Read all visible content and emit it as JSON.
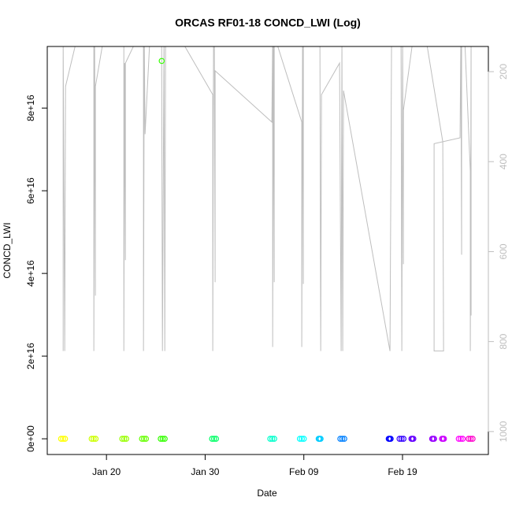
{
  "chart_data": {
    "type": "scatter",
    "title": "ORCAS RF01-18 CONCD_LWI (Log)",
    "xlabel": "Date",
    "ylabel": "CONCD_LWI",
    "xlim": [
      14.0,
      58.7
    ],
    "xticks": [
      {
        "value": 20,
        "label": "Jan 20"
      },
      {
        "value": 30,
        "label": "Jan 30"
      },
      {
        "value": 40,
        "label": "Feb 09"
      },
      {
        "value": 50,
        "label": "Feb 19"
      }
    ],
    "ylim": [
      -3800000000000000.0,
      9.49e+16
    ],
    "yticks": [
      {
        "value": 0,
        "label": "0e+00"
      },
      {
        "value": 2e+16,
        "label": "2e+16"
      },
      {
        "value": 4e+16,
        "label": "4e+16"
      },
      {
        "value": 6e+16,
        "label": "6e+16"
      },
      {
        "value": 8e+16,
        "label": "8e+16"
      }
    ],
    "y2lim": [
      1051,
      144
    ],
    "y2ticks": [
      200,
      400,
      600,
      800,
      1000
    ],
    "series": [
      {
        "type": "line",
        "axis": "y2",
        "color": "#bebebe",
        "x": [
          15.61,
          15.61,
          15.77,
          15.85,
          16.97,
          18.72,
          18.72,
          18.8,
          18.88,
          18.88,
          19.68,
          21.76,
          21.76,
          21.84,
          21.92,
          21.92,
          23.03,
          23.75,
          23.75,
          23.83,
          23.91,
          24.39,
          25.59,
          25.67,
          25.83,
          25.91,
          25.99,
          27.58,
          30.77,
          30.77,
          30.85,
          30.93,
          31.01,
          31.01,
          36.76,
          36.84,
          36.84,
          36.92,
          37.0,
          37.0,
          37.16,
          39.79,
          39.79,
          39.87,
          39.95,
          39.95,
          41.63,
          41.71,
          41.79,
          43.62,
          43.78,
          43.86,
          43.94,
          44.02,
          48.73,
          48.89,
          49.85,
          49.93,
          50.01,
          50.09,
          50.09,
          51.05,
          52.4,
          54.08,
          54.16,
          53.2,
          53.2,
          55.83,
          55.91,
          55.99,
          55.99,
          56.31,
          56.87,
          56.87,
          56.95,
          56.95
        ],
        "values": [
          821,
          130,
          821,
          233,
          130,
          130,
          821,
          130,
          698,
          233,
          130,
          130,
          821,
          181,
          619,
          181,
          130,
          130,
          821,
          130,
          339,
          130,
          130,
          821,
          130,
          821,
          130,
          130,
          251,
          821,
          130,
          130,
          668,
          198,
          312,
          130,
          812,
          130,
          668,
          130,
          130,
          312,
          812,
          130,
          672,
          130,
          130,
          821,
          251,
          181,
          821,
          130,
          821,
          242,
          821,
          130,
          130,
          821,
          130,
          628,
          286,
          130,
          130,
          356,
          821,
          821,
          360,
          347,
          130,
          607,
          130,
          130,
          421,
          821,
          130,
          742
        ]
      },
      {
        "type": "scatter",
        "x": [
          15.4,
          15.6,
          15.8,
          18.5,
          18.7,
          18.9,
          21.6,
          21.8,
          22.0,
          23.6,
          23.8,
          24.0,
          25.5,
          25.7,
          25.9,
          30.7,
          30.9,
          31.1,
          36.6,
          36.8,
          37.0,
          39.6,
          39.8,
          40.0,
          41.5,
          41.6,
          41.7,
          43.7,
          43.9,
          44.1,
          48.6,
          48.7,
          48.8,
          49.7,
          49.9,
          50.1,
          50.9,
          51.0,
          51.1,
          53.0,
          53.1,
          53.2,
          54.0,
          54.1,
          54.2,
          55.7,
          55.9,
          56.1,
          56.7,
          56.9,
          57.1,
          25.6
        ],
        "values": [
          0,
          0,
          0,
          0,
          0,
          0,
          0,
          0,
          0,
          0,
          0,
          0,
          0,
          0,
          0,
          0,
          0,
          0,
          0,
          0,
          0,
          0,
          0,
          0,
          0,
          0,
          0,
          0,
          0,
          0,
          0,
          0,
          0,
          0,
          0,
          0,
          0,
          0,
          0,
          0,
          0,
          0,
          0,
          0,
          0,
          0,
          0,
          0,
          0,
          0,
          0,
          9.14e+16
        ],
        "colors": [
          "#ffff00",
          "#ffff00",
          "#ffff00",
          "#ccff00",
          "#ccff00",
          "#ccff00",
          "#99ff00",
          "#99ff00",
          "#99ff00",
          "#66ff00",
          "#66ff00",
          "#66ff00",
          "#33ff00",
          "#33ff00",
          "#33ff00",
          "#00ff66",
          "#00ff66",
          "#00ff66",
          "#00ffcc",
          "#00ffcc",
          "#00ffcc",
          "#00ffff",
          "#00ffff",
          "#00ffff",
          "#00ccff",
          "#00ccff",
          "#00ccff",
          "#0080ff",
          "#0080ff",
          "#0080ff",
          "#0000ff",
          "#0000ff",
          "#0000ff",
          "#3300ff",
          "#3300ff",
          "#3300ff",
          "#6600ff",
          "#6600ff",
          "#6600ff",
          "#9900ff",
          "#9900ff",
          "#9900ff",
          "#cc00ff",
          "#cc00ff",
          "#cc00ff",
          "#ff00ff",
          "#ff00ff",
          "#ff00ff",
          "#ff00cc",
          "#ff00cc",
          "#ff00cc",
          "#33ff00"
        ]
      }
    ]
  }
}
